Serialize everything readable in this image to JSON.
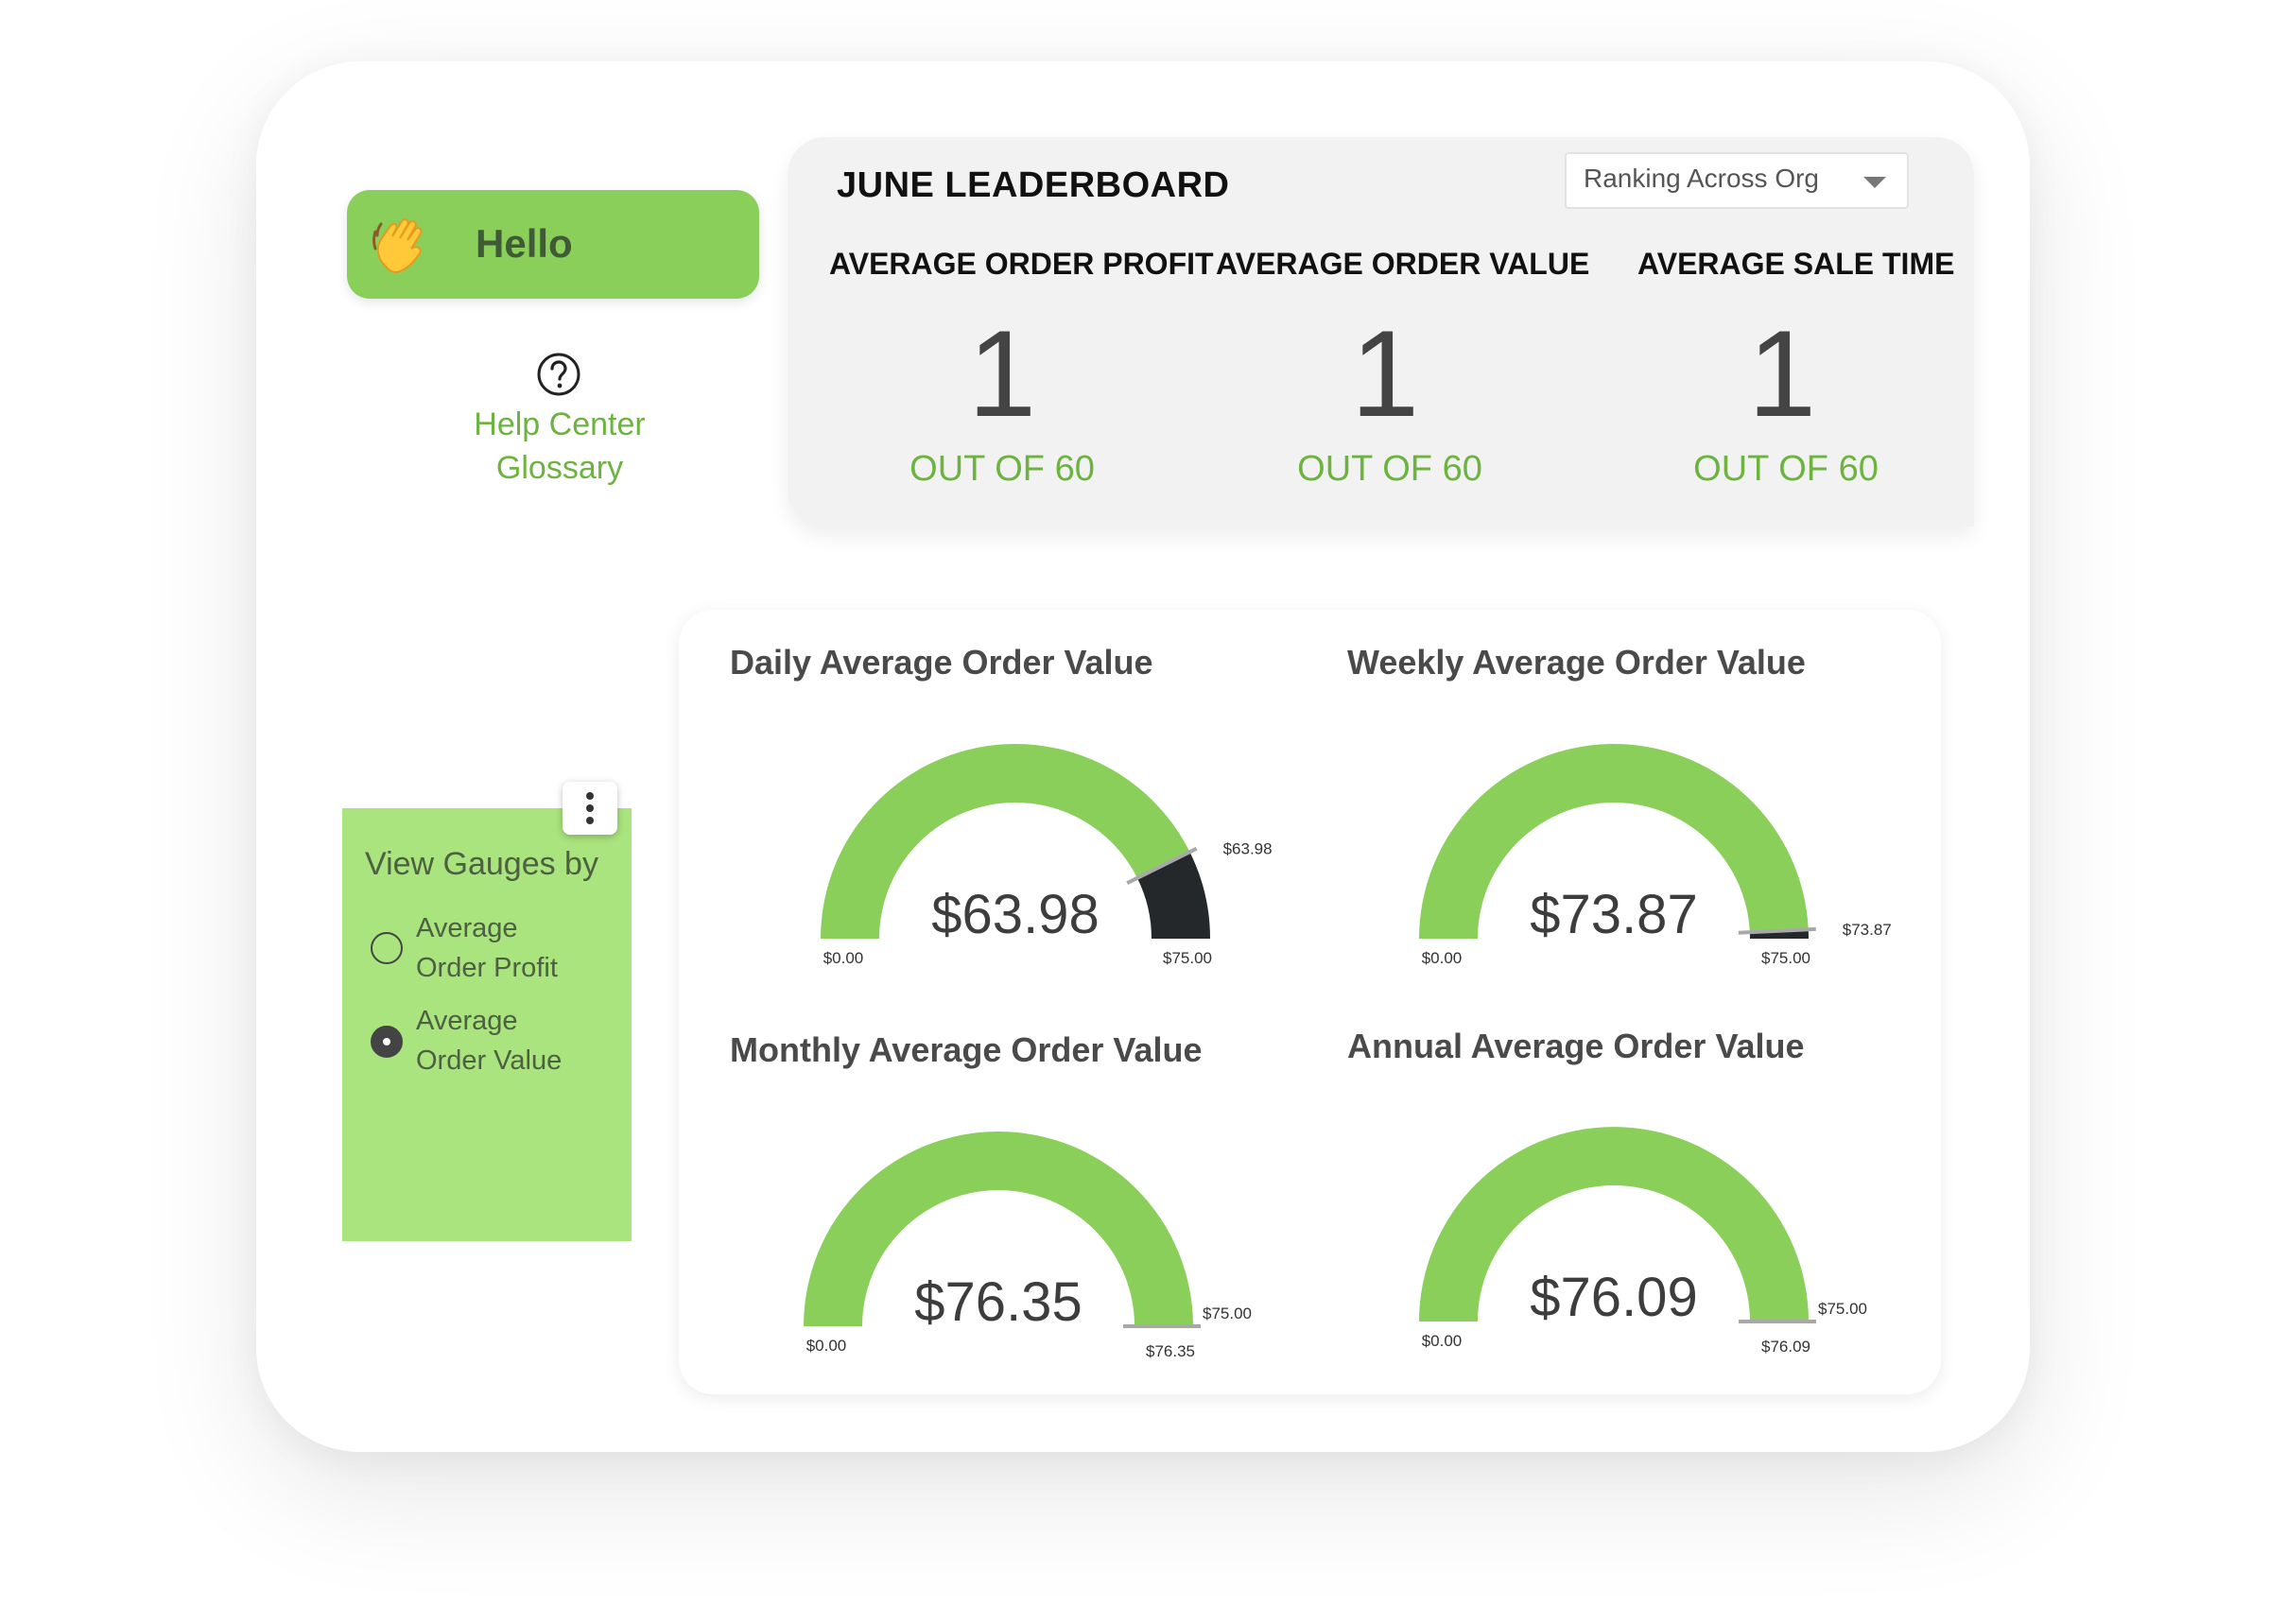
{
  "hello": {
    "label": "Hello",
    "icon": "waving-hand-icon"
  },
  "help": {
    "icon": "question-circle-icon",
    "links": [
      "Help Center",
      "Glossary"
    ]
  },
  "leaderboard": {
    "title": "JUNE LEADERBOARD",
    "dropdown": {
      "selected": "Ranking Across Org"
    },
    "metrics": [
      {
        "label": "AVERAGE ORDER PROFIT",
        "rank": "1",
        "out_of": "OUT OF 60"
      },
      {
        "label": "AVERAGE ORDER VALUE",
        "rank": "1",
        "out_of": "OUT OF 60"
      },
      {
        "label": "AVERAGE SALE TIME",
        "rank": "1",
        "out_of": "OUT OF 60"
      }
    ]
  },
  "view_gauges": {
    "title": "View Gauges by",
    "options": [
      {
        "label_line1": "Average",
        "label_line2": "Order Profit",
        "checked": false
      },
      {
        "label_line1": "Average",
        "label_line2": "Order Value",
        "checked": true
      }
    ]
  },
  "gauges": [
    {
      "title": "Daily Average Order Value",
      "value": 63.98,
      "min": 0,
      "max": 75,
      "value_label": "$63.98",
      "min_label": "$0.00",
      "max_label": "$75.00",
      "marker_label": "$63.98"
    },
    {
      "title": "Weekly Average Order Value",
      "value": 73.87,
      "min": 0,
      "max": 75,
      "value_label": "$73.87",
      "min_label": "$0.00",
      "max_label": "$75.00",
      "marker_label": "$73.87"
    },
    {
      "title": "Monthly Average Order Value",
      "value": 76.35,
      "min": 0,
      "max": 75,
      "value_label": "$76.35",
      "min_label": "$0.00",
      "max_label": "$75.00",
      "marker_label": "$76.35"
    },
    {
      "title": "Annual Average Order Value",
      "value": 76.09,
      "min": 0,
      "max": 75,
      "value_label": "$76.09",
      "min_label": "$0.00",
      "max_label": "$75.00",
      "marker_label": "$76.09"
    }
  ],
  "colors": {
    "accent": "#8bcf5b",
    "accent_text": "#6db33f",
    "gauge_fill": "#8bcf5b",
    "gauge_rest": "#24282b",
    "panel_green": "#aae47e"
  }
}
